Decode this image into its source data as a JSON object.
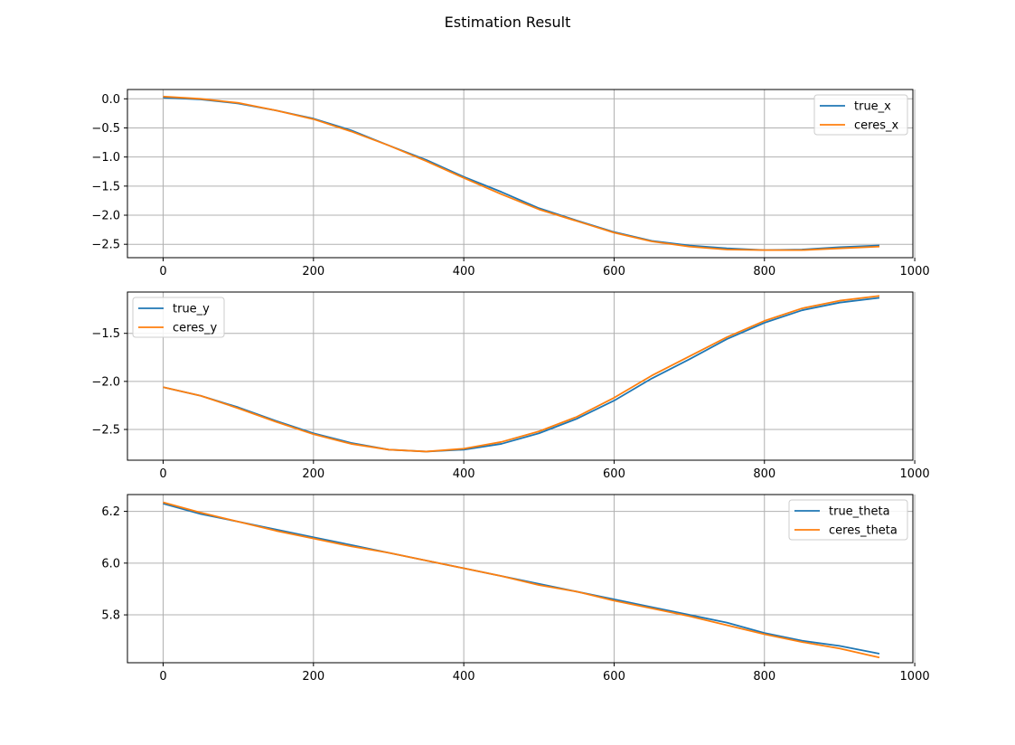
{
  "figure": {
    "suptitle": "Estimation Result"
  },
  "colors": {
    "true_series": "#1f77b4",
    "ceres_series": "#ff7f0e",
    "grid": "#b0b0b0",
    "axes": "#000000"
  },
  "chart_data": [
    {
      "type": "line",
      "title": "",
      "xlabel": "",
      "ylabel": "",
      "xlim": [
        -47.5,
        997.5
      ],
      "ylim": [
        -2.73,
        0.16
      ],
      "xticks": [
        0,
        200,
        400,
        600,
        800,
        1000
      ],
      "yticks": [
        0.0,
        -0.5,
        -1.0,
        -1.5,
        -2.0,
        -2.5
      ],
      "ytick_labels": [
        "0.0",
        "−0.5",
        "−1.0",
        "−1.5",
        "−2.0",
        "−2.5"
      ],
      "grid": true,
      "legend_position": "upper right",
      "series": [
        {
          "name": "true_x",
          "color": "#1f77b4",
          "x": [
            0,
            50,
            100,
            150,
            200,
            250,
            300,
            350,
            400,
            450,
            500,
            550,
            600,
            650,
            700,
            750,
            800,
            850,
            900,
            953
          ],
          "y": [
            0.02,
            -0.01,
            -0.08,
            -0.2,
            -0.34,
            -0.54,
            -0.8,
            -1.05,
            -1.34,
            -1.6,
            -1.88,
            -2.09,
            -2.29,
            -2.44,
            -2.52,
            -2.57,
            -2.6,
            -2.59,
            -2.55,
            -2.52
          ]
        },
        {
          "name": "ceres_x",
          "color": "#ff7f0e",
          "x": [
            0,
            50,
            100,
            150,
            200,
            250,
            300,
            350,
            400,
            450,
            500,
            550,
            600,
            650,
            700,
            750,
            800,
            850,
            900,
            953
          ],
          "y": [
            0.04,
            0.0,
            -0.07,
            -0.2,
            -0.35,
            -0.56,
            -0.8,
            -1.07,
            -1.36,
            -1.64,
            -1.9,
            -2.1,
            -2.3,
            -2.45,
            -2.54,
            -2.59,
            -2.6,
            -2.6,
            -2.57,
            -2.54
          ]
        }
      ]
    },
    {
      "type": "line",
      "title": "",
      "xlabel": "",
      "ylabel": "",
      "xlim": [
        -47.5,
        997.5
      ],
      "ylim": [
        -2.82,
        -1.07
      ],
      "xticks": [
        0,
        200,
        400,
        600,
        800,
        1000
      ],
      "yticks": [
        -1.5,
        -2.0,
        -2.5
      ],
      "ytick_labels": [
        "−1.5",
        "−2.0",
        "−2.5"
      ],
      "grid": true,
      "legend_position": "upper left",
      "series": [
        {
          "name": "true_y",
          "color": "#1f77b4",
          "x": [
            0,
            50,
            100,
            150,
            200,
            250,
            300,
            350,
            400,
            450,
            500,
            550,
            600,
            650,
            700,
            750,
            800,
            850,
            900,
            953
          ],
          "y": [
            -2.06,
            -2.15,
            -2.27,
            -2.41,
            -2.54,
            -2.64,
            -2.71,
            -2.73,
            -2.71,
            -2.65,
            -2.54,
            -2.39,
            -2.2,
            -1.97,
            -1.77,
            -1.56,
            -1.39,
            -1.26,
            -1.18,
            -1.13
          ]
        },
        {
          "name": "ceres_y",
          "color": "#ff7f0e",
          "x": [
            0,
            50,
            100,
            150,
            200,
            250,
            300,
            350,
            400,
            450,
            500,
            550,
            600,
            650,
            700,
            750,
            800,
            850,
            900,
            953
          ],
          "y": [
            -2.06,
            -2.15,
            -2.28,
            -2.42,
            -2.55,
            -2.65,
            -2.71,
            -2.73,
            -2.7,
            -2.63,
            -2.52,
            -2.37,
            -2.17,
            -1.94,
            -1.74,
            -1.54,
            -1.37,
            -1.24,
            -1.16,
            -1.11
          ]
        }
      ]
    },
    {
      "type": "line",
      "title": "",
      "xlabel": "",
      "ylabel": "",
      "xlim": [
        -47.5,
        997.5
      ],
      "ylim": [
        5.615,
        6.265
      ],
      "xticks": [
        0,
        200,
        400,
        600,
        800,
        1000
      ],
      "yticks": [
        5.8,
        6.0,
        6.2
      ],
      "ytick_labels": [
        "5.8",
        "6.0",
        "6.2"
      ],
      "grid": true,
      "legend_position": "upper right",
      "series": [
        {
          "name": "true_theta",
          "color": "#1f77b4",
          "x": [
            0,
            50,
            100,
            150,
            200,
            250,
            300,
            350,
            400,
            450,
            500,
            550,
            600,
            650,
            700,
            750,
            800,
            850,
            900,
            953
          ],
          "y": [
            6.23,
            6.19,
            6.16,
            6.13,
            6.1,
            6.07,
            6.04,
            6.01,
            5.98,
            5.95,
            5.92,
            5.89,
            5.86,
            5.83,
            5.8,
            5.77,
            5.73,
            5.7,
            5.68,
            5.65
          ]
        },
        {
          "name": "ceres_theta",
          "color": "#ff7f0e",
          "x": [
            0,
            50,
            100,
            150,
            200,
            250,
            300,
            350,
            400,
            450,
            500,
            550,
            600,
            650,
            700,
            750,
            800,
            850,
            900,
            953
          ],
          "y": [
            6.235,
            6.195,
            6.16,
            6.125,
            6.095,
            6.065,
            6.04,
            6.01,
            5.98,
            5.95,
            5.915,
            5.89,
            5.855,
            5.825,
            5.795,
            5.76,
            5.725,
            5.695,
            5.67,
            5.635
          ]
        }
      ]
    }
  ]
}
